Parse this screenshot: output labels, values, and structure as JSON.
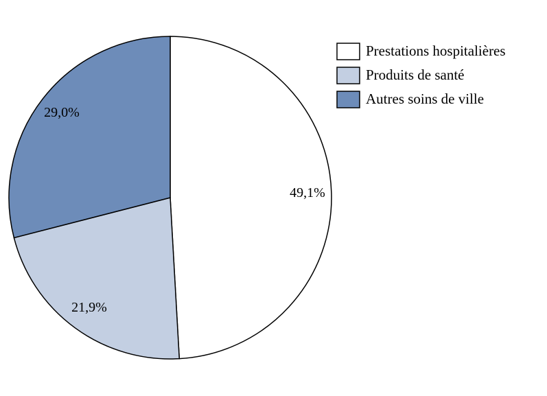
{
  "chart_data": {
    "type": "pie",
    "categories": [
      "Prestations hospitalières",
      "Produits de santé",
      "Autres soins de ville"
    ],
    "values": [
      49.1,
      21.9,
      29.0
    ],
    "value_labels": [
      "49,1%",
      "21,9%",
      "29,0%"
    ],
    "colors": [
      "#ffffff",
      "#c3cfe2",
      "#6d8cb9"
    ],
    "legend": "upper right"
  }
}
